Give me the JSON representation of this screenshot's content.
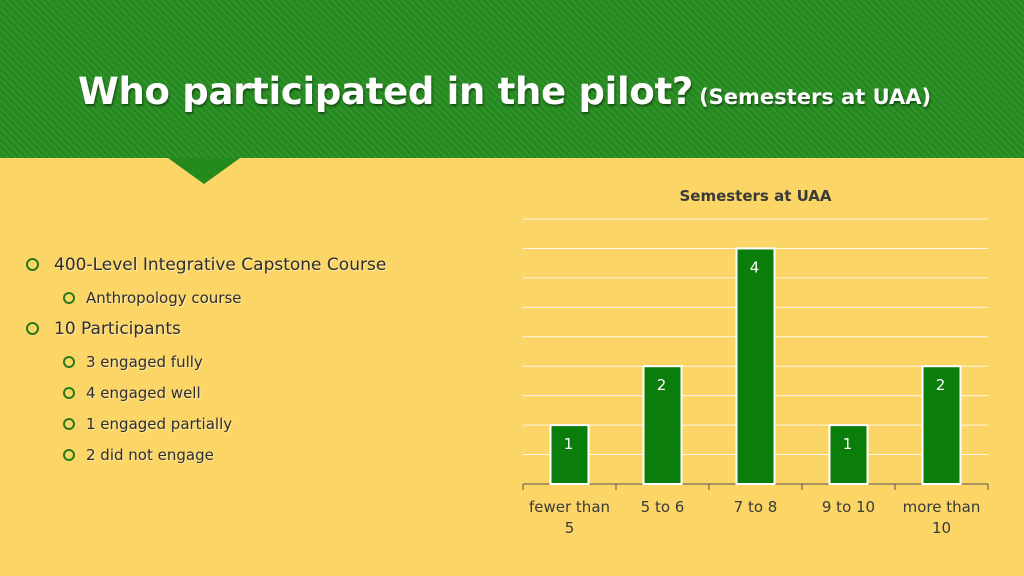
{
  "slide": {
    "title": "Who participated in the pilot?",
    "subtitle": "(Semesters at UAA)"
  },
  "bullets": [
    {
      "level": 1,
      "text": "400-Level Integrative Capstone Course"
    },
    {
      "level": 2,
      "text": "Anthropology course"
    },
    {
      "level": 1,
      "text": "10 Participants"
    },
    {
      "level": 2,
      "text": "3 engaged fully"
    },
    {
      "level": 2,
      "text": "4 engaged well"
    },
    {
      "level": 2,
      "text": "1 engaged partially"
    },
    {
      "level": 2,
      "text": "2 did not engage"
    }
  ],
  "colors": {
    "background": "#fbd565",
    "header": "#248a1e",
    "bar": "#0a7d0a",
    "bar_outline": "#ffffff"
  },
  "chart_data": {
    "type": "bar",
    "title": "Semesters at UAA",
    "categories": [
      [
        "fewer than",
        "5"
      ],
      [
        "5 to 6"
      ],
      [
        "7 to 8"
      ],
      [
        "9 to 10"
      ],
      [
        "more than",
        "10"
      ]
    ],
    "values": [
      1,
      2,
      4,
      1,
      2
    ],
    "ylim": [
      0,
      4.5
    ],
    "grid": true,
    "data_labels": true,
    "xlabel": "",
    "ylabel": ""
  }
}
